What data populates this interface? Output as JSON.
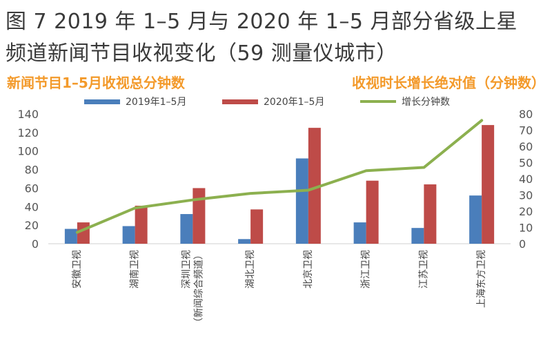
{
  "header": {
    "title_line1": "图 7 2019 年 1–5 月与 2020 年 1–5 月部分省级上星",
    "title_line2": "频道新闻节目收视变化（59 测量仪城市）",
    "left_axis_title": "新闻节目1–5月收视总分钟数",
    "right_axis_title": "收视时长增长绝对值（分钟数）"
  },
  "colors": {
    "series_2019": "#4a7ebb",
    "series_2020": "#be4b48",
    "series_growth": "#8cb04f",
    "axis_title": "#f39a2b"
  },
  "chart_data": {
    "type": "bar",
    "title": "",
    "xlabel": "",
    "ylabel": "新闻节目1–5月收视总分钟数",
    "y2label": "收视时长增长绝对值（分钟数）",
    "categories": [
      [
        "安徽卫视"
      ],
      [
        "湖南卫视"
      ],
      [
        "深圳卫视",
        "（新闻综合频道）"
      ],
      [
        "湖北卫视"
      ],
      [
        "北京卫视"
      ],
      [
        "浙江卫视"
      ],
      [
        "江苏卫视"
      ],
      [
        "上海东方卫视"
      ]
    ],
    "series": [
      {
        "name": "2019年1–5月",
        "type": "bar",
        "axis": "left",
        "values": [
          16,
          19,
          32,
          5,
          92,
          23,
          17,
          52
        ]
      },
      {
        "name": "2020年1–5月",
        "type": "bar",
        "axis": "left",
        "values": [
          23,
          41,
          60,
          37,
          125,
          68,
          64,
          128
        ]
      },
      {
        "name": "增长分钟数",
        "type": "line",
        "axis": "right",
        "values": [
          7,
          22,
          27,
          31,
          33,
          45,
          47,
          76
        ]
      }
    ],
    "ylim": [
      0,
      140
    ],
    "yticks": [
      0,
      20,
      40,
      60,
      80,
      100,
      120,
      140
    ],
    "y2lim": [
      0,
      80
    ],
    "y2ticks": [
      0,
      10,
      20,
      30,
      40,
      50,
      60,
      70,
      80
    ],
    "legend_position": "top",
    "grid": false
  }
}
